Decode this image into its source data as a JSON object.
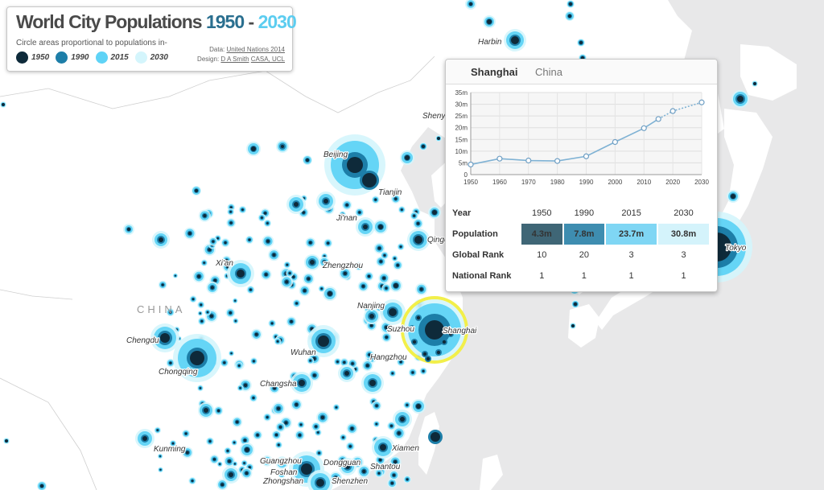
{
  "title": {
    "main": "World City Populations ",
    "year_start": "1950",
    "dash": "- ",
    "year_end": "2030",
    "subtitle": "Circle areas proportional to populations in-"
  },
  "legend": [
    {
      "label": "1950",
      "color": "#0e2a3a"
    },
    {
      "label": "1990",
      "color": "#1d7ea8"
    },
    {
      "label": "2015",
      "color": "#5fd3f6"
    },
    {
      "label": "2030",
      "color": "#d4f5fc"
    }
  ],
  "credits": {
    "data_label": "Data:",
    "data_link": "United Nations 2014",
    "design_label": "Design:",
    "designer_link": "D A Smith",
    "org_link": "CASA, UCL"
  },
  "map": {
    "country_label": "CHINA",
    "cities": [
      "Harbin",
      "Shenyang",
      "Beijing",
      "Tianjin",
      "Ji'nan",
      "Qingdao",
      "Xi'an",
      "Zhengzhou",
      "Nanjing",
      "Suzhou",
      "Shanghai",
      "Chengdu",
      "Chongqing",
      "Wuhan",
      "Hangzhou",
      "Changsha",
      "Xiamen",
      "Kunming",
      "Guangzhou",
      "Dongguan",
      "Shantou",
      "Foshan",
      "Zhongshan",
      "Shenzhen",
      "Tokyo"
    ]
  },
  "popup": {
    "city": "Shanghai",
    "country": "China",
    "table": {
      "year_label": "Year",
      "population_label": "Population",
      "global_rank_label": "Global Rank",
      "national_rank_label": "National Rank",
      "years": [
        "1950",
        "1990",
        "2015",
        "2030"
      ],
      "population": [
        "4.3m",
        "7.8m",
        "23.7m",
        "30.8m"
      ],
      "global_rank": [
        "10",
        "20",
        "3",
        "3"
      ],
      "national_rank": [
        "1",
        "1",
        "1",
        "1"
      ]
    }
  },
  "chart_data": {
    "type": "line",
    "title": "",
    "xlabel": "",
    "ylabel": "",
    "x": [
      1950,
      1960,
      1970,
      1980,
      1990,
      2000,
      2010,
      2015,
      2020,
      2030
    ],
    "y_millions": [
      4.3,
      6.8,
      6.0,
      5.8,
      7.8,
      13.9,
      19.8,
      23.7,
      27.1,
      30.8
    ],
    "projected_from": 2015,
    "xlim": [
      1950,
      2030
    ],
    "ylim": [
      0,
      35
    ],
    "x_ticks": [
      "1950",
      "1960",
      "1970",
      "1980",
      "1990",
      "2000",
      "2010",
      "2020",
      "2030"
    ],
    "y_ticks": [
      "0",
      "5m",
      "10m",
      "15m",
      "20m",
      "25m",
      "30m",
      "35m"
    ],
    "grid": true,
    "line_color": "#7fb2d4"
  }
}
